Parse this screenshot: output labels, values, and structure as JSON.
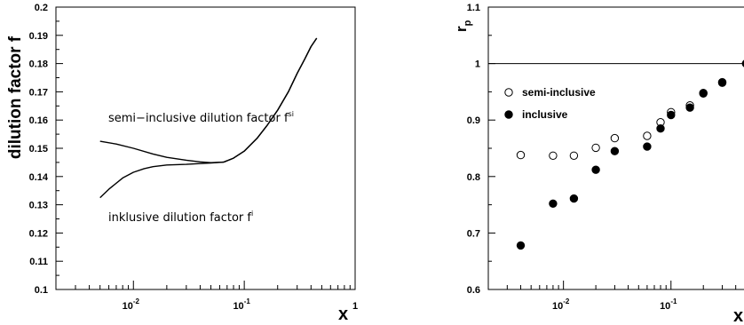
{
  "chart_data": [
    {
      "type": "line",
      "xlabel": "x",
      "ylabel": "dilution factor f",
      "xscale": "log",
      "xlim": [
        0.002,
        1
      ],
      "ylim": [
        0.1,
        0.2
      ],
      "y_ticks": [
        "0.1",
        "0.11",
        "0.12",
        "0.13",
        "0.14",
        "0.15",
        "0.16",
        "0.17",
        "0.18",
        "0.19",
        "0.2"
      ],
      "x_ticks": [
        {
          "base": "10",
          "exp": "-2"
        },
        {
          "base": "10",
          "exp": "-1"
        },
        {
          "base": "1",
          "exp": ""
        }
      ],
      "annotations": [
        {
          "text": "semi−inclusive  dilution factor f",
          "sup": "si"
        },
        {
          "text": "inklusive dilution factor f",
          "sup": "i"
        }
      ],
      "series": [
        {
          "x": [
            0.005,
            0.007,
            0.01,
            0.015,
            0.02,
            0.03,
            0.04,
            0.05,
            0.065,
            0.08,
            0.1,
            0.13,
            0.16,
            0.2,
            0.25,
            0.3,
            0.35,
            0.4,
            0.45
          ],
          "values": [
            0.1525,
            0.1515,
            0.15,
            0.148,
            0.1468,
            0.1458,
            0.1452,
            0.1449,
            0.1451,
            0.1465,
            0.149,
            0.1535,
            0.158,
            0.1635,
            0.17,
            0.1765,
            0.1815,
            0.186,
            0.189
          ]
        },
        {
          "x": [
            0.005,
            0.006,
            0.008,
            0.01,
            0.0125,
            0.015,
            0.02,
            0.03,
            0.04,
            0.05,
            0.065,
            0.08,
            0.1,
            0.13,
            0.16,
            0.2,
            0.25,
            0.3,
            0.35,
            0.4,
            0.45
          ],
          "values": [
            0.1325,
            0.1355,
            0.1395,
            0.1415,
            0.1428,
            0.1435,
            0.1441,
            0.1443,
            0.1446,
            0.1448,
            0.1451,
            0.1465,
            0.149,
            0.1535,
            0.158,
            0.1635,
            0.17,
            0.1765,
            0.1815,
            0.186,
            0.189
          ]
        }
      ]
    },
    {
      "type": "scatter",
      "xlabel": "x",
      "ylabel": "r",
      "ylabel_sub": "p",
      "xscale": "log",
      "xlim": [
        0.002,
        0.6
      ],
      "ylim": [
        0.6,
        1.1
      ],
      "y_ticks": [
        "0.6",
        "0.7",
        "0.8",
        "0.9",
        "1",
        "1.1"
      ],
      "x_ticks": [
        {
          "base": "10",
          "exp": "-2"
        },
        {
          "base": "10",
          "exp": "-1"
        }
      ],
      "reference_line": 1,
      "series": [
        {
          "name": "semi-inclusive",
          "marker": "open-circle",
          "x": [
            0.004,
            0.008,
            0.0125,
            0.02,
            0.03,
            0.06,
            0.08,
            0.1,
            0.15,
            0.2,
            0.3,
            0.5
          ],
          "values": [
            0.838,
            0.837,
            0.837,
            0.851,
            0.868,
            0.872,
            0.896,
            0.914,
            0.926,
            0.948,
            0.967,
            1.0
          ]
        },
        {
          "name": "inclusive",
          "marker": "filled-circle",
          "x": [
            0.004,
            0.008,
            0.0125,
            0.02,
            0.03,
            0.06,
            0.08,
            0.1,
            0.15,
            0.2,
            0.3,
            0.5
          ],
          "values": [
            0.678,
            0.752,
            0.761,
            0.812,
            0.845,
            0.853,
            0.885,
            0.909,
            0.922,
            0.947,
            0.966,
            1.0
          ]
        }
      ]
    }
  ]
}
